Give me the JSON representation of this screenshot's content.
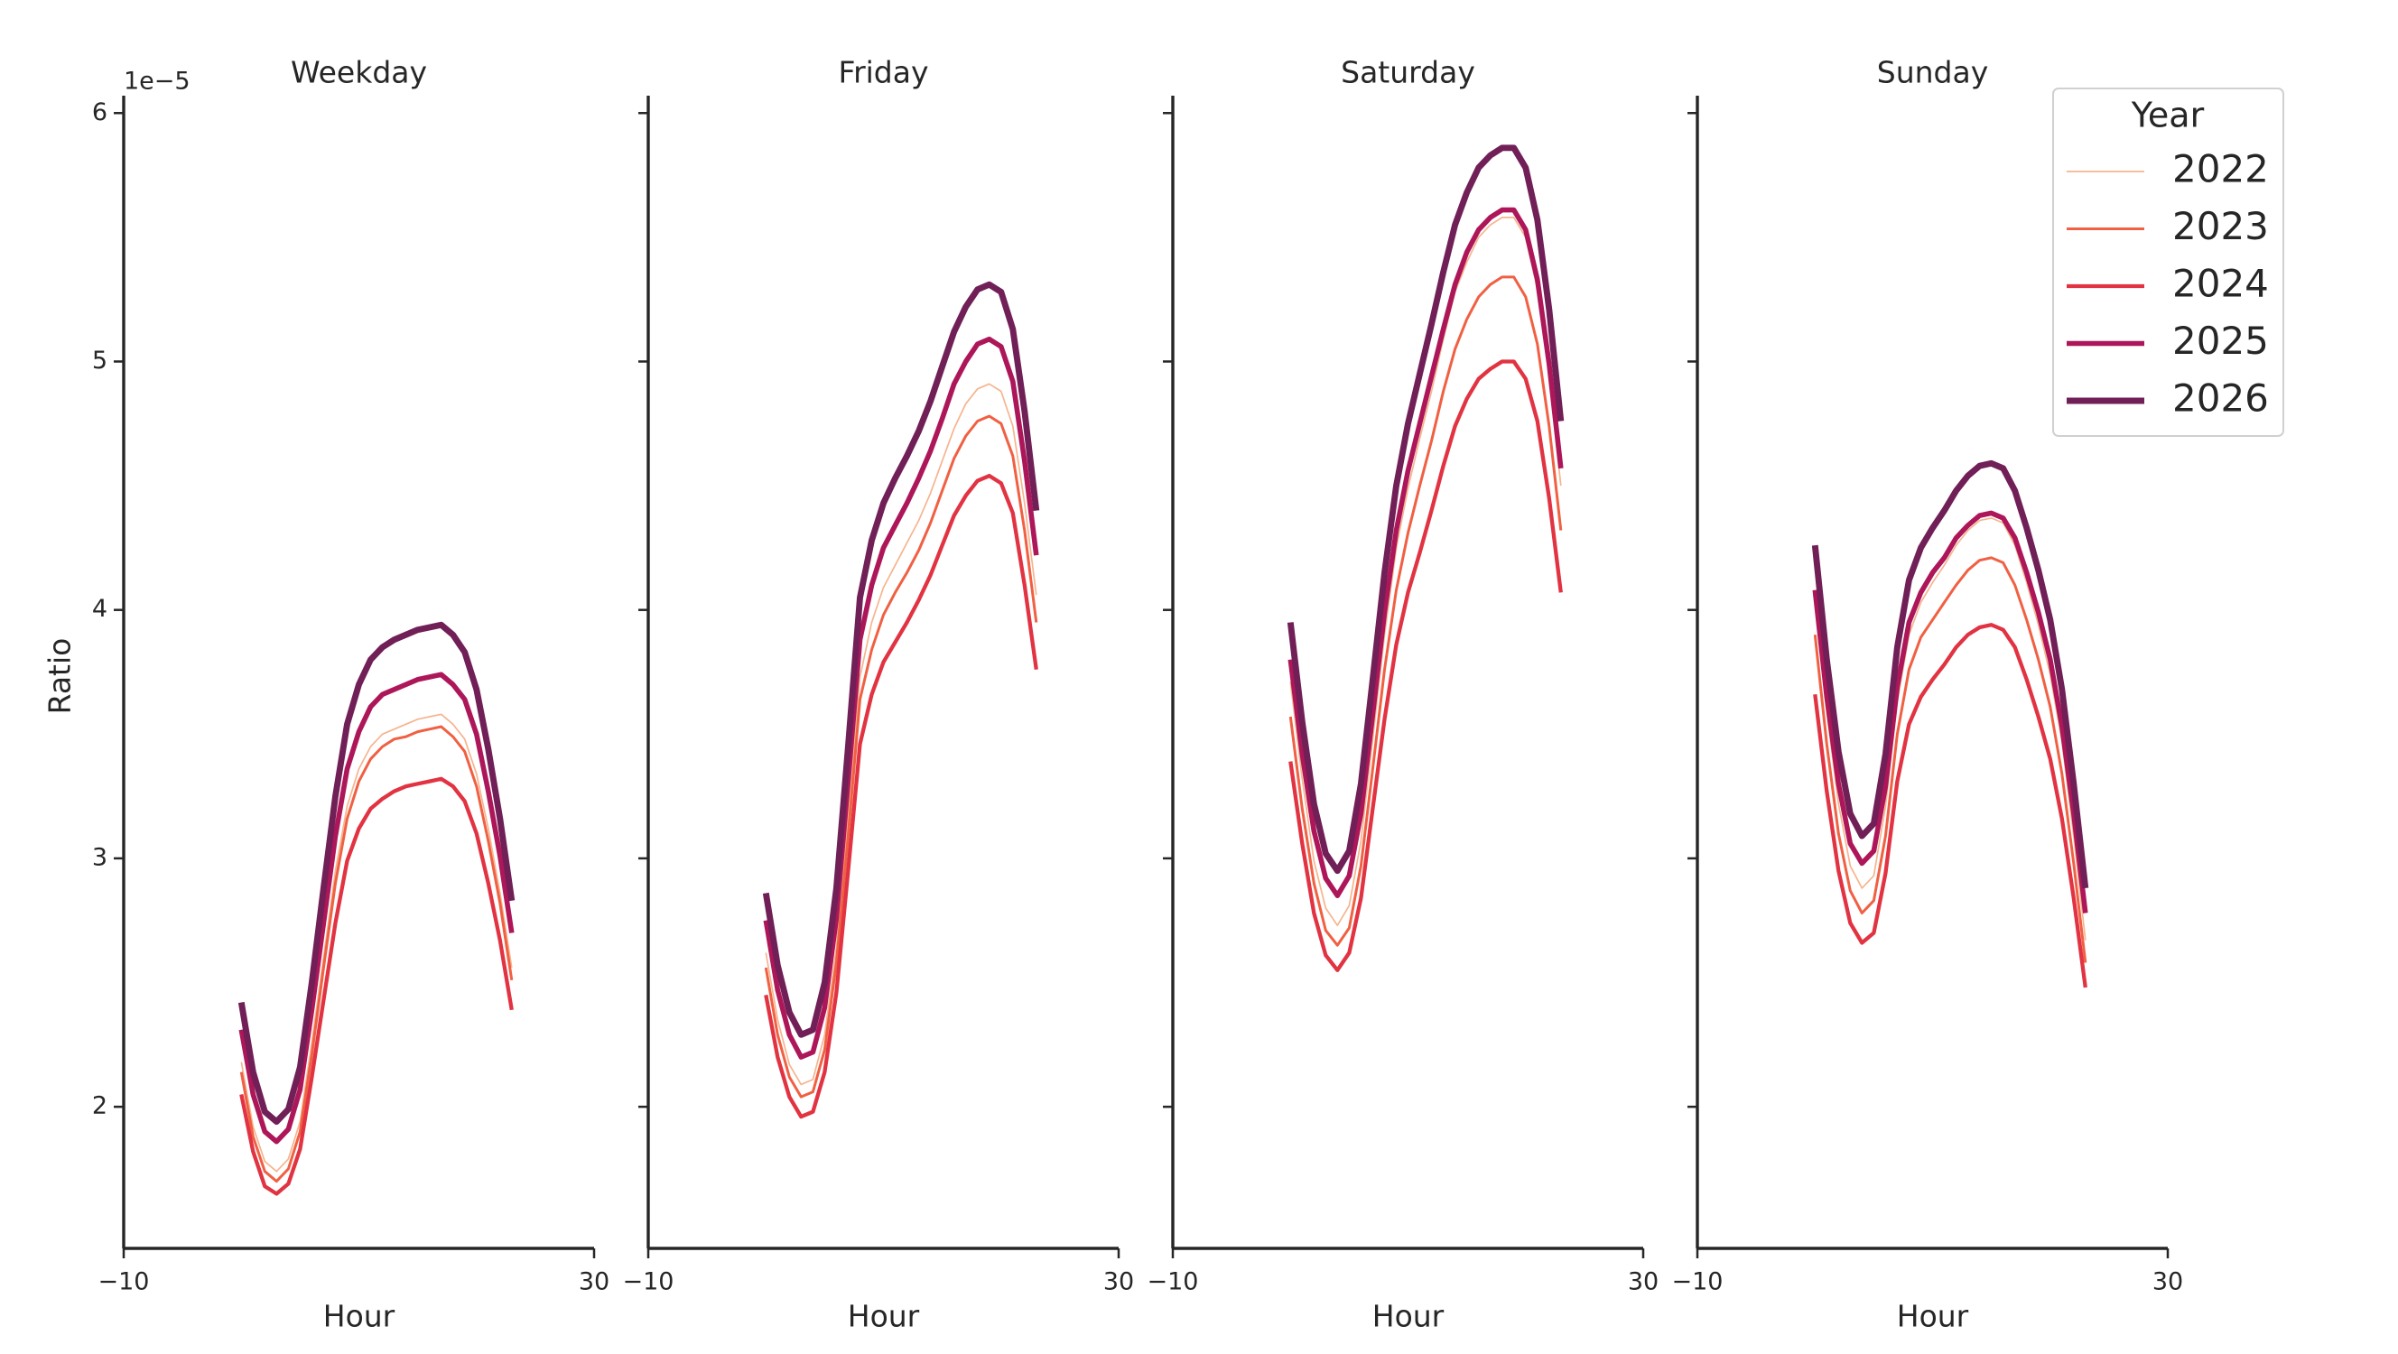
{
  "chart_data": [
    {
      "type": "line",
      "title": "Weekday",
      "x_label": "Hour",
      "y_label": "Ratio",
      "y_offset_label": "1e−5",
      "xlim": [
        -10,
        30
      ],
      "xticks": [
        {
          "value": -10,
          "label": "−10"
        },
        30
      ],
      "ylim": [
        1.43,
        6.07
      ],
      "yticks": [
        2,
        3,
        4,
        5,
        6
      ],
      "legend_title": "Year",
      "legend_position": "upper right",
      "x": [
        0,
        1,
        2,
        3,
        4,
        5,
        6,
        7,
        8,
        9,
        10,
        11,
        12,
        13,
        14,
        15,
        16,
        17,
        18,
        19,
        20,
        21,
        22,
        23
      ],
      "series": [
        {
          "name": "2022",
          "color": "#f6b48f",
          "values": [
            2.18,
            1.92,
            1.78,
            1.74,
            1.79,
            1.94,
            2.26,
            2.6,
            2.95,
            3.21,
            3.36,
            3.45,
            3.5,
            3.52,
            3.54,
            3.56,
            3.57,
            3.58,
            3.54,
            3.48,
            3.34,
            3.12,
            2.86,
            2.56
          ]
        },
        {
          "name": "2023",
          "color": "#f06043",
          "values": [
            2.14,
            1.88,
            1.74,
            1.7,
            1.75,
            1.9,
            2.21,
            2.56,
            2.9,
            3.16,
            3.31,
            3.4,
            3.45,
            3.48,
            3.49,
            3.51,
            3.52,
            3.53,
            3.49,
            3.43,
            3.29,
            3.07,
            2.82,
            2.51
          ]
        },
        {
          "name": "2024",
          "color": "#e13342",
          "values": [
            2.05,
            1.82,
            1.68,
            1.65,
            1.69,
            1.83,
            2.12,
            2.43,
            2.74,
            2.99,
            3.12,
            3.2,
            3.24,
            3.27,
            3.29,
            3.3,
            3.31,
            3.32,
            3.29,
            3.23,
            3.1,
            2.9,
            2.67,
            2.39
          ]
        },
        {
          "name": "2025",
          "color": "#ad1759",
          "values": [
            2.31,
            2.05,
            1.9,
            1.86,
            1.91,
            2.07,
            2.39,
            2.74,
            3.09,
            3.36,
            3.51,
            3.61,
            3.66,
            3.68,
            3.7,
            3.72,
            3.73,
            3.74,
            3.7,
            3.64,
            3.5,
            3.27,
            3.01,
            2.7
          ]
        },
        {
          "name": "2026",
          "color": "#701f57",
          "values": [
            2.42,
            2.14,
            1.98,
            1.94,
            1.99,
            2.16,
            2.5,
            2.88,
            3.25,
            3.54,
            3.7,
            3.8,
            3.85,
            3.88,
            3.9,
            3.92,
            3.93,
            3.94,
            3.9,
            3.83,
            3.68,
            3.44,
            3.16,
            2.83
          ]
        }
      ]
    },
    {
      "type": "line",
      "title": "Friday",
      "x_label": "Hour",
      "xlim": [
        -10,
        30
      ],
      "xticks": [
        {
          "value": -10,
          "label": "−10"
        },
        30
      ],
      "x": [
        0,
        1,
        2,
        3,
        4,
        5,
        6,
        7,
        8,
        9,
        10,
        11,
        12,
        13,
        14,
        15,
        16,
        17,
        18,
        19,
        20,
        21,
        22,
        23
      ],
      "series": [
        {
          "name": "2022",
          "color": "#f6b48f",
          "values": [
            2.62,
            2.35,
            2.17,
            2.09,
            2.11,
            2.29,
            2.64,
            3.17,
            3.73,
            3.95,
            4.09,
            4.18,
            4.27,
            4.36,
            4.47,
            4.6,
            4.73,
            4.83,
            4.89,
            4.91,
            4.88,
            4.74,
            4.43,
            4.06
          ]
        },
        {
          "name": "2023",
          "color": "#f06043",
          "values": [
            2.56,
            2.29,
            2.12,
            2.04,
            2.06,
            2.23,
            2.58,
            3.09,
            3.64,
            3.84,
            3.98,
            4.07,
            4.15,
            4.24,
            4.35,
            4.48,
            4.61,
            4.7,
            4.76,
            4.78,
            4.75,
            4.62,
            4.32,
            3.95
          ]
        },
        {
          "name": "2024",
          "color": "#e13342",
          "values": [
            2.45,
            2.2,
            2.04,
            1.96,
            1.98,
            2.14,
            2.46,
            2.95,
            3.46,
            3.66,
            3.79,
            3.87,
            3.95,
            4.04,
            4.14,
            4.26,
            4.38,
            4.46,
            4.52,
            4.54,
            4.51,
            4.39,
            4.1,
            3.76
          ]
        },
        {
          "name": "2025",
          "color": "#ad1759",
          "values": [
            2.75,
            2.47,
            2.29,
            2.2,
            2.22,
            2.4,
            2.76,
            3.31,
            3.88,
            4.1,
            4.25,
            4.34,
            4.43,
            4.53,
            4.64,
            4.77,
            4.91,
            5.0,
            5.07,
            5.09,
            5.06,
            4.92,
            4.6,
            4.22
          ]
        },
        {
          "name": "2026",
          "color": "#701f57",
          "values": [
            2.86,
            2.57,
            2.38,
            2.29,
            2.31,
            2.5,
            2.88,
            3.45,
            4.05,
            4.28,
            4.43,
            4.53,
            4.62,
            4.72,
            4.84,
            4.98,
            5.12,
            5.22,
            5.29,
            5.31,
            5.28,
            5.13,
            4.8,
            4.4
          ]
        }
      ]
    },
    {
      "type": "line",
      "title": "Saturday",
      "x_label": "Hour",
      "xlim": [
        -10,
        30
      ],
      "xticks": [
        {
          "value": -10,
          "label": "−10"
        },
        30
      ],
      "x": [
        0,
        1,
        2,
        3,
        4,
        5,
        6,
        7,
        8,
        9,
        10,
        11,
        12,
        13,
        14,
        15,
        16,
        17,
        18,
        19,
        20,
        21,
        22,
        23
      ],
      "series": [
        {
          "name": "2022",
          "color": "#f6b48f",
          "values": [
            3.71,
            3.32,
            2.99,
            2.8,
            2.73,
            2.81,
            3.07,
            3.48,
            3.9,
            4.25,
            4.49,
            4.69,
            4.88,
            5.09,
            5.28,
            5.4,
            5.5,
            5.55,
            5.58,
            5.58,
            5.5,
            5.29,
            4.94,
            4.5
          ]
        },
        {
          "name": "2023",
          "color": "#f06043",
          "values": [
            3.57,
            3.2,
            2.9,
            2.71,
            2.65,
            2.72,
            2.97,
            3.36,
            3.76,
            4.08,
            4.31,
            4.5,
            4.68,
            4.88,
            5.05,
            5.17,
            5.26,
            5.31,
            5.34,
            5.34,
            5.26,
            5.07,
            4.74,
            4.32
          ]
        },
        {
          "name": "2024",
          "color": "#e13342",
          "values": [
            3.39,
            3.06,
            2.78,
            2.61,
            2.55,
            2.62,
            2.84,
            3.2,
            3.56,
            3.86,
            4.07,
            4.23,
            4.4,
            4.58,
            4.74,
            4.85,
            4.93,
            4.97,
            5.0,
            5.0,
            4.93,
            4.76,
            4.45,
            4.07
          ]
        },
        {
          "name": "2025",
          "color": "#ad1759",
          "values": [
            3.8,
            3.42,
            3.11,
            2.92,
            2.85,
            2.93,
            3.18,
            3.58,
            3.99,
            4.32,
            4.56,
            4.75,
            4.94,
            5.13,
            5.31,
            5.44,
            5.53,
            5.58,
            5.61,
            5.61,
            5.53,
            5.33,
            4.99,
            4.57
          ]
        },
        {
          "name": "2026",
          "color": "#701f57",
          "values": [
            3.95,
            3.55,
            3.22,
            3.02,
            2.95,
            3.03,
            3.3,
            3.72,
            4.15,
            4.5,
            4.75,
            4.95,
            5.15,
            5.36,
            5.55,
            5.68,
            5.78,
            5.83,
            5.86,
            5.86,
            5.78,
            5.57,
            5.21,
            4.76
          ]
        }
      ]
    },
    {
      "type": "line",
      "title": "Sunday",
      "x_label": "Hour",
      "xlim": [
        -10,
        30
      ],
      "xticks": [
        {
          "value": -10,
          "label": "−10"
        },
        30
      ],
      "x": [
        0,
        1,
        2,
        3,
        4,
        5,
        6,
        7,
        8,
        9,
        10,
        11,
        12,
        13,
        14,
        15,
        16,
        17,
        18,
        19,
        20,
        21,
        22,
        23
      ],
      "series": [
        {
          "name": "2022",
          "color": "#f6b48f",
          "values": [
            4.04,
            3.59,
            3.22,
            2.97,
            2.88,
            2.93,
            3.21,
            3.63,
            3.9,
            4.03,
            4.11,
            4.18,
            4.26,
            4.32,
            4.36,
            4.37,
            4.35,
            4.26,
            4.11,
            3.94,
            3.74,
            3.47,
            3.09,
            2.67
          ]
        },
        {
          "name": "2023",
          "color": "#f06043",
          "values": [
            3.9,
            3.46,
            3.1,
            2.87,
            2.78,
            2.83,
            3.09,
            3.5,
            3.76,
            3.89,
            3.96,
            4.03,
            4.1,
            4.16,
            4.2,
            4.21,
            4.19,
            4.1,
            3.96,
            3.8,
            3.61,
            3.34,
            2.98,
            2.58
          ]
        },
        {
          "name": "2024",
          "color": "#e13342",
          "values": [
            3.66,
            3.27,
            2.95,
            2.74,
            2.66,
            2.7,
            2.94,
            3.31,
            3.54,
            3.65,
            3.72,
            3.78,
            3.85,
            3.9,
            3.93,
            3.94,
            3.92,
            3.85,
            3.72,
            3.57,
            3.4,
            3.16,
            2.84,
            2.48
          ]
        },
        {
          "name": "2025",
          "color": "#ad1759",
          "values": [
            4.08,
            3.65,
            3.3,
            3.06,
            2.98,
            3.03,
            3.29,
            3.69,
            3.95,
            4.07,
            4.15,
            4.21,
            4.29,
            4.34,
            4.38,
            4.39,
            4.37,
            4.29,
            4.15,
            3.99,
            3.8,
            3.53,
            3.18,
            2.78
          ]
        },
        {
          "name": "2026",
          "color": "#701f57",
          "values": [
            4.26,
            3.8,
            3.43,
            3.18,
            3.09,
            3.14,
            3.42,
            3.85,
            4.12,
            4.25,
            4.33,
            4.4,
            4.48,
            4.54,
            4.58,
            4.59,
            4.57,
            4.48,
            4.33,
            4.16,
            3.96,
            3.68,
            3.3,
            2.88
          ]
        }
      ]
    }
  ]
}
